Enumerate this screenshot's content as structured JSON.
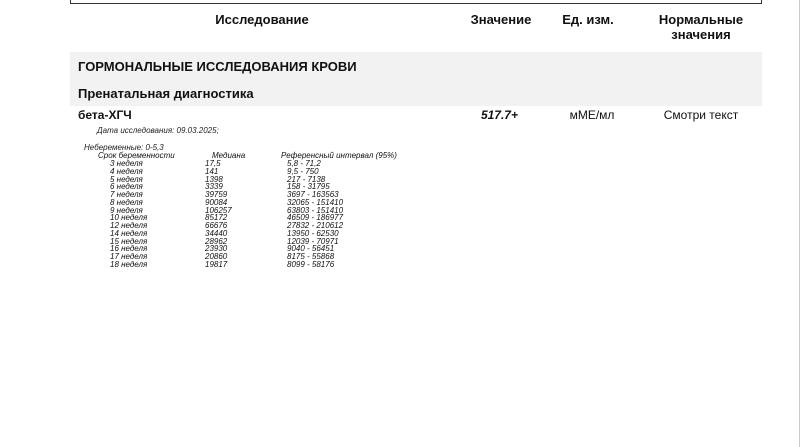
{
  "header": {
    "study": "Исследование",
    "value": "Значение",
    "unit": "Ед. изм.",
    "normal_line1": "Нормальные",
    "normal_line2": "значения"
  },
  "section": "ГОРМОНАЛЬНЫЕ ИССЛЕДОВАНИЯ КРОВИ",
  "subsection": "Пренатальная диагностика",
  "test": {
    "name": "бета-ХГЧ",
    "value": "517.7+",
    "unit": "мМЕ/мл",
    "normal": "Смотри текст"
  },
  "note": {
    "date": "Дата исследования: 09.03.2025;",
    "nonpregnant": "Небеременные: 0-5,3",
    "columns": [
      "Срок беременности",
      "Медиана",
      "Референсный интервал (95%)"
    ],
    "rows": [
      [
        "3 неделя",
        "17,5",
        "5,8 - 71,2"
      ],
      [
        "4 неделя",
        "141",
        "9,5 - 750"
      ],
      [
        "5 неделя",
        "1398",
        "217 - 7138"
      ],
      [
        "6 неделя",
        "3339",
        "158 - 31795"
      ],
      [
        "7 неделя",
        "39759",
        "3697 - 163563"
      ],
      [
        "8 неделя",
        "90084",
        "32065 - 151410"
      ],
      [
        "9 неделя",
        "106257",
        "63803 - 151410"
      ],
      [
        "10 неделя",
        "85172",
        "46509 - 186977"
      ],
      [
        "12 неделя",
        "66676",
        "27832 - 210612"
      ],
      [
        "14 неделя",
        "34440",
        "13950 - 62530"
      ],
      [
        "15 неделя",
        "28962",
        "12039 - 70971"
      ],
      [
        "16 неделя",
        "23930",
        "9040 - 56451"
      ],
      [
        "17 неделя",
        "20860",
        "8175 - 55868"
      ],
      [
        "18 неделя",
        "19817",
        "8099 - 58176"
      ]
    ]
  }
}
